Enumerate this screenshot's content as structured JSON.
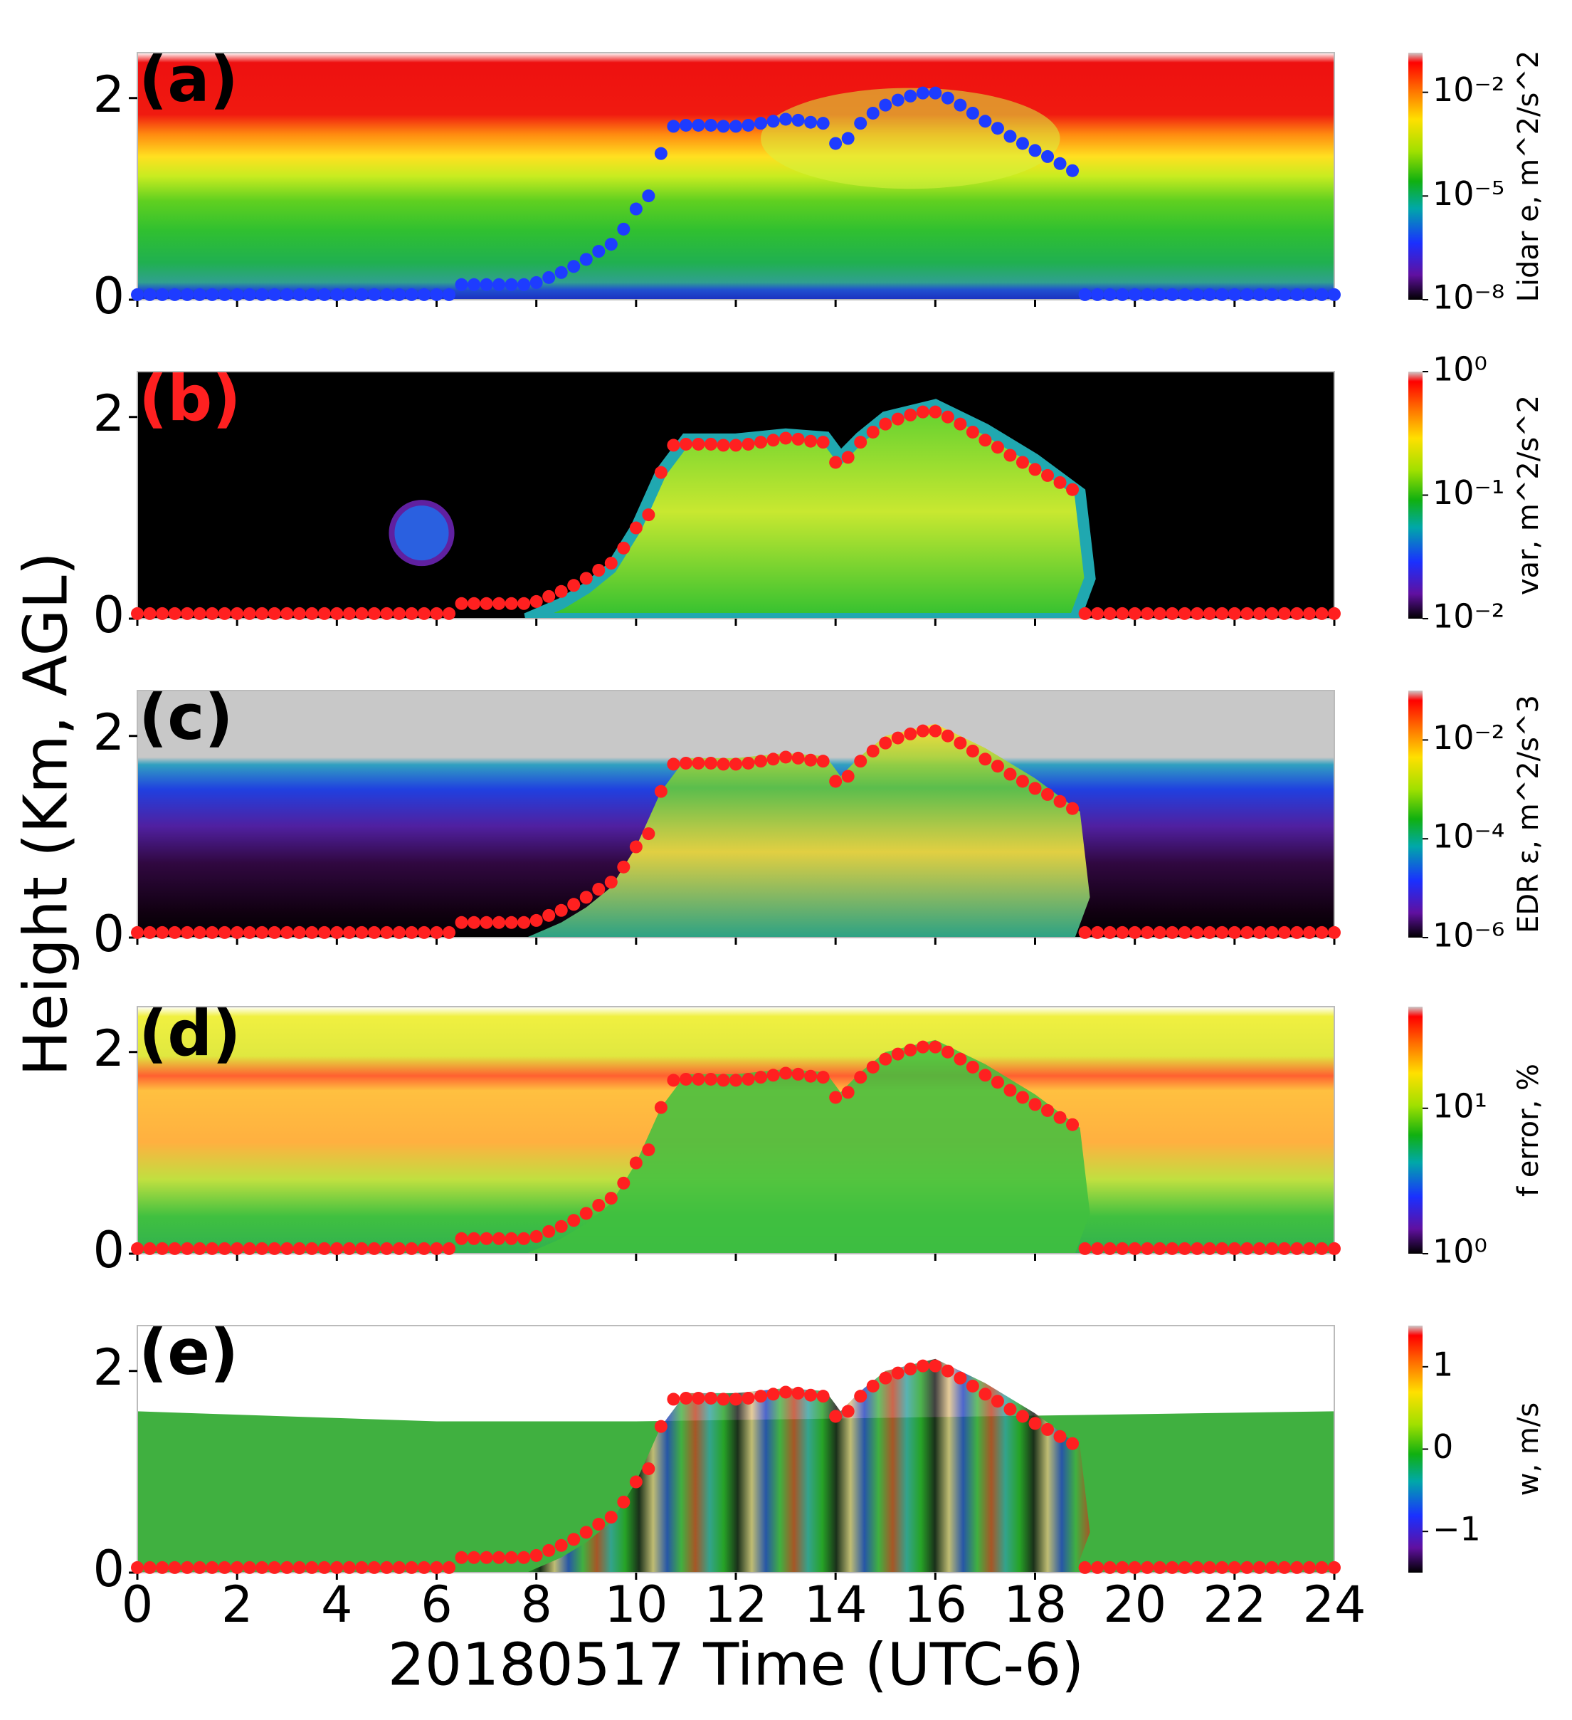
{
  "chart_data": [
    {
      "type": "scatter",
      "panel_label": "(a)",
      "panel_label_color": "#000000",
      "color": "#1e3cff",
      "x": [
        0,
        0.25,
        0.5,
        0.75,
        1,
        1.25,
        1.5,
        1.75,
        2,
        2.25,
        2.5,
        2.75,
        3,
        3.25,
        3.5,
        3.75,
        4,
        4.25,
        4.5,
        4.75,
        5,
        5.25,
        5.5,
        5.75,
        6,
        6.25,
        6.5,
        6.75,
        7,
        7.25,
        7.5,
        7.75,
        8,
        8.25,
        8.5,
        8.75,
        9,
        9.25,
        9.5,
        9.75,
        10,
        10.25,
        10.5,
        10.75,
        11,
        11.25,
        11.5,
        11.75,
        12,
        12.25,
        12.5,
        12.75,
        13,
        13.25,
        13.5,
        13.75,
        14,
        14.25,
        14.5,
        14.75,
        15,
        15.25,
        15.5,
        15.75,
        16,
        16.25,
        16.5,
        16.75,
        17,
        17.25,
        17.5,
        17.75,
        18,
        18.25,
        18.5,
        18.75,
        19,
        19.25,
        19.5,
        19.75,
        20,
        20.25,
        20.5,
        20.75,
        21,
        21.25,
        21.5,
        21.75,
        22,
        22.25,
        22.5,
        22.75,
        23,
        23.25,
        23.5,
        23.75,
        24
      ],
      "values": [
        0.05,
        0.05,
        0.05,
        0.05,
        0.05,
        0.05,
        0.05,
        0.05,
        0.05,
        0.05,
        0.05,
        0.05,
        0.05,
        0.05,
        0.05,
        0.05,
        0.05,
        0.05,
        0.05,
        0.05,
        0.05,
        0.05,
        0.05,
        0.05,
        0.05,
        0.05,
        0.15,
        0.15,
        0.15,
        0.15,
        0.15,
        0.15,
        0.17,
        0.22,
        0.27,
        0.33,
        0.4,
        0.48,
        0.55,
        0.7,
        0.9,
        1.03,
        1.45,
        1.72,
        1.73,
        1.73,
        1.73,
        1.72,
        1.72,
        1.73,
        1.75,
        1.77,
        1.79,
        1.78,
        1.76,
        1.75,
        1.55,
        1.6,
        1.75,
        1.85,
        1.93,
        1.98,
        2.02,
        2.05,
        2.05,
        2.0,
        1.93,
        1.85,
        1.77,
        1.7,
        1.62,
        1.55,
        1.48,
        1.42,
        1.35,
        1.28,
        0.05,
        0.05,
        0.05,
        0.05,
        0.05,
        0.05,
        0.05,
        0.05,
        0.05,
        0.05,
        0.05,
        0.05,
        0.05,
        0.05,
        0.05,
        0.05,
        0.05,
        0.05,
        0.05,
        0.05,
        0.05
      ],
      "xlim": [
        0,
        24
      ],
      "xticks": [
        0,
        2,
        4,
        6,
        8,
        10,
        12,
        14,
        16,
        18,
        20,
        22,
        24
      ],
      "ylim": [
        0,
        2.45
      ],
      "yticks": [
        0,
        2
      ],
      "colorbar_label": "Lidar e, m^2/s^2",
      "color_log": true,
      "clim": [
        1e-08,
        0.14
      ],
      "cticks": [
        {
          "value": 1e-08,
          "label": "10⁻⁸"
        },
        {
          "value": 1e-05,
          "label": "10⁻⁵"
        },
        {
          "value": 0.01,
          "label": "10⁻²"
        }
      ]
    },
    {
      "type": "scatter",
      "panel_label": "(b)",
      "panel_label_color": "#ff2020",
      "color": "#ff2020",
      "x": [
        0,
        0.25,
        0.5,
        0.75,
        1,
        1.25,
        1.5,
        1.75,
        2,
        2.25,
        2.5,
        2.75,
        3,
        3.25,
        3.5,
        3.75,
        4,
        4.25,
        4.5,
        4.75,
        5,
        5.25,
        5.5,
        5.75,
        6,
        6.25,
        6.5,
        6.75,
        7,
        7.25,
        7.5,
        7.75,
        8,
        8.25,
        8.5,
        8.75,
        9,
        9.25,
        9.5,
        9.75,
        10,
        10.25,
        10.5,
        10.75,
        11,
        11.25,
        11.5,
        11.75,
        12,
        12.25,
        12.5,
        12.75,
        13,
        13.25,
        13.5,
        13.75,
        14,
        14.25,
        14.5,
        14.75,
        15,
        15.25,
        15.5,
        15.75,
        16,
        16.25,
        16.5,
        16.75,
        17,
        17.25,
        17.5,
        17.75,
        18,
        18.25,
        18.5,
        18.75,
        19,
        19.25,
        19.5,
        19.75,
        20,
        20.25,
        20.5,
        20.75,
        21,
        21.25,
        21.5,
        21.75,
        22,
        22.25,
        22.5,
        22.75,
        23,
        23.25,
        23.5,
        23.75,
        24
      ],
      "values": [
        0.05,
        0.05,
        0.05,
        0.05,
        0.05,
        0.05,
        0.05,
        0.05,
        0.05,
        0.05,
        0.05,
        0.05,
        0.05,
        0.05,
        0.05,
        0.05,
        0.05,
        0.05,
        0.05,
        0.05,
        0.05,
        0.05,
        0.05,
        0.05,
        0.05,
        0.05,
        0.15,
        0.15,
        0.15,
        0.15,
        0.15,
        0.15,
        0.17,
        0.22,
        0.27,
        0.33,
        0.4,
        0.48,
        0.55,
        0.7,
        0.9,
        1.03,
        1.45,
        1.72,
        1.73,
        1.73,
        1.73,
        1.72,
        1.72,
        1.73,
        1.75,
        1.77,
        1.79,
        1.78,
        1.76,
        1.75,
        1.55,
        1.6,
        1.75,
        1.85,
        1.93,
        1.98,
        2.02,
        2.05,
        2.05,
        2.0,
        1.93,
        1.85,
        1.77,
        1.7,
        1.62,
        1.55,
        1.48,
        1.42,
        1.35,
        1.28,
        0.05,
        0.05,
        0.05,
        0.05,
        0.05,
        0.05,
        0.05,
        0.05,
        0.05,
        0.05,
        0.05,
        0.05,
        0.05,
        0.05,
        0.05,
        0.05,
        0.05,
        0.05,
        0.05,
        0.05,
        0.05
      ],
      "xlim": [
        0,
        24
      ],
      "xticks": [
        0,
        2,
        4,
        6,
        8,
        10,
        12,
        14,
        16,
        18,
        20,
        22,
        24
      ],
      "ylim": [
        0,
        2.45
      ],
      "yticks": [
        0,
        2
      ],
      "colorbar_label": "var, m^2/s^2",
      "color_log": true,
      "clim": [
        0.01,
        1
      ],
      "cticks": [
        {
          "value": 0.01,
          "label": "10⁻²"
        },
        {
          "value": 0.1,
          "label": "10⁻¹"
        },
        {
          "value": 1,
          "label": "10⁰"
        }
      ]
    },
    {
      "type": "scatter",
      "panel_label": "(c)",
      "panel_label_color": "#000000",
      "color": "#ff2020",
      "ylabel": "Height (Km, AGL)",
      "x": [
        0,
        0.25,
        0.5,
        0.75,
        1,
        1.25,
        1.5,
        1.75,
        2,
        2.25,
        2.5,
        2.75,
        3,
        3.25,
        3.5,
        3.75,
        4,
        4.25,
        4.5,
        4.75,
        5,
        5.25,
        5.5,
        5.75,
        6,
        6.25,
        6.5,
        6.75,
        7,
        7.25,
        7.5,
        7.75,
        8,
        8.25,
        8.5,
        8.75,
        9,
        9.25,
        9.5,
        9.75,
        10,
        10.25,
        10.5,
        10.75,
        11,
        11.25,
        11.5,
        11.75,
        12,
        12.25,
        12.5,
        12.75,
        13,
        13.25,
        13.5,
        13.75,
        14,
        14.25,
        14.5,
        14.75,
        15,
        15.25,
        15.5,
        15.75,
        16,
        16.25,
        16.5,
        16.75,
        17,
        17.25,
        17.5,
        17.75,
        18,
        18.25,
        18.5,
        18.75,
        19,
        19.25,
        19.5,
        19.75,
        20,
        20.25,
        20.5,
        20.75,
        21,
        21.25,
        21.5,
        21.75,
        22,
        22.25,
        22.5,
        22.75,
        23,
        23.25,
        23.5,
        23.75,
        24
      ],
      "values": [
        0.05,
        0.05,
        0.05,
        0.05,
        0.05,
        0.05,
        0.05,
        0.05,
        0.05,
        0.05,
        0.05,
        0.05,
        0.05,
        0.05,
        0.05,
        0.05,
        0.05,
        0.05,
        0.05,
        0.05,
        0.05,
        0.05,
        0.05,
        0.05,
        0.05,
        0.05,
        0.15,
        0.15,
        0.15,
        0.15,
        0.15,
        0.15,
        0.17,
        0.22,
        0.27,
        0.33,
        0.4,
        0.48,
        0.55,
        0.7,
        0.9,
        1.03,
        1.45,
        1.72,
        1.73,
        1.73,
        1.73,
        1.72,
        1.72,
        1.73,
        1.75,
        1.77,
        1.79,
        1.78,
        1.76,
        1.75,
        1.55,
        1.6,
        1.75,
        1.85,
        1.93,
        1.98,
        2.02,
        2.05,
        2.05,
        2.0,
        1.93,
        1.85,
        1.77,
        1.7,
        1.62,
        1.55,
        1.48,
        1.42,
        1.35,
        1.28,
        0.05,
        0.05,
        0.05,
        0.05,
        0.05,
        0.05,
        0.05,
        0.05,
        0.05,
        0.05,
        0.05,
        0.05,
        0.05,
        0.05,
        0.05,
        0.05,
        0.05,
        0.05,
        0.05,
        0.05,
        0.05
      ],
      "xlim": [
        0,
        24
      ],
      "xticks": [
        0,
        2,
        4,
        6,
        8,
        10,
        12,
        14,
        16,
        18,
        20,
        22,
        24
      ],
      "ylim": [
        0,
        2.45
      ],
      "yticks": [
        0,
        2
      ],
      "colorbar_label": "EDR ε, m^2/s^3",
      "color_log": true,
      "clim": [
        1e-06,
        0.1
      ],
      "cticks": [
        {
          "value": 1e-06,
          "label": "10⁻⁶"
        },
        {
          "value": 0.0001,
          "label": "10⁻⁴"
        },
        {
          "value": 0.01,
          "label": "10⁻²"
        }
      ]
    },
    {
      "type": "scatter",
      "panel_label": "(d)",
      "panel_label_color": "#000000",
      "color": "#ff2020",
      "x": [
        0,
        0.25,
        0.5,
        0.75,
        1,
        1.25,
        1.5,
        1.75,
        2,
        2.25,
        2.5,
        2.75,
        3,
        3.25,
        3.5,
        3.75,
        4,
        4.25,
        4.5,
        4.75,
        5,
        5.25,
        5.5,
        5.75,
        6,
        6.25,
        6.5,
        6.75,
        7,
        7.25,
        7.5,
        7.75,
        8,
        8.25,
        8.5,
        8.75,
        9,
        9.25,
        9.5,
        9.75,
        10,
        10.25,
        10.5,
        10.75,
        11,
        11.25,
        11.5,
        11.75,
        12,
        12.25,
        12.5,
        12.75,
        13,
        13.25,
        13.5,
        13.75,
        14,
        14.25,
        14.5,
        14.75,
        15,
        15.25,
        15.5,
        15.75,
        16,
        16.25,
        16.5,
        16.75,
        17,
        17.25,
        17.5,
        17.75,
        18,
        18.25,
        18.5,
        18.75,
        19,
        19.25,
        19.5,
        19.75,
        20,
        20.25,
        20.5,
        20.75,
        21,
        21.25,
        21.5,
        21.75,
        22,
        22.25,
        22.5,
        22.75,
        23,
        23.25,
        23.5,
        23.75,
        24
      ],
      "values": [
        0.05,
        0.05,
        0.05,
        0.05,
        0.05,
        0.05,
        0.05,
        0.05,
        0.05,
        0.05,
        0.05,
        0.05,
        0.05,
        0.05,
        0.05,
        0.05,
        0.05,
        0.05,
        0.05,
        0.05,
        0.05,
        0.05,
        0.05,
        0.05,
        0.05,
        0.05,
        0.15,
        0.15,
        0.15,
        0.15,
        0.15,
        0.15,
        0.17,
        0.22,
        0.27,
        0.33,
        0.4,
        0.48,
        0.55,
        0.7,
        0.9,
        1.03,
        1.45,
        1.72,
        1.73,
        1.73,
        1.73,
        1.72,
        1.72,
        1.73,
        1.75,
        1.77,
        1.79,
        1.78,
        1.76,
        1.75,
        1.55,
        1.6,
        1.75,
        1.85,
        1.93,
        1.98,
        2.02,
        2.05,
        2.05,
        2.0,
        1.93,
        1.85,
        1.77,
        1.7,
        1.62,
        1.55,
        1.48,
        1.42,
        1.35,
        1.28,
        0.05,
        0.05,
        0.05,
        0.05,
        0.05,
        0.05,
        0.05,
        0.05,
        0.05,
        0.05,
        0.05,
        0.05,
        0.05,
        0.05,
        0.05,
        0.05,
        0.05,
        0.05,
        0.05,
        0.05,
        0.05
      ],
      "xlim": [
        0,
        24
      ],
      "xticks": [
        0,
        2,
        4,
        6,
        8,
        10,
        12,
        14,
        16,
        18,
        20,
        22,
        24
      ],
      "ylim": [
        0,
        2.45
      ],
      "yticks": [
        0,
        2
      ],
      "colorbar_label": "f error, %",
      "color_log": true,
      "clim": [
        1,
        50
      ],
      "cticks": [
        {
          "value": 1,
          "label": "10⁰"
        },
        {
          "value": 10,
          "label": "10¹"
        }
      ]
    },
    {
      "type": "scatter",
      "panel_label": "(e)",
      "panel_label_color": "#000000",
      "color": "#ff2020",
      "xlabel": "20180517 Time (UTC-6)",
      "x": [
        0,
        0.25,
        0.5,
        0.75,
        1,
        1.25,
        1.5,
        1.75,
        2,
        2.25,
        2.5,
        2.75,
        3,
        3.25,
        3.5,
        3.75,
        4,
        4.25,
        4.5,
        4.75,
        5,
        5.25,
        5.5,
        5.75,
        6,
        6.25,
        6.5,
        6.75,
        7,
        7.25,
        7.5,
        7.75,
        8,
        8.25,
        8.5,
        8.75,
        9,
        9.25,
        9.5,
        9.75,
        10,
        10.25,
        10.5,
        10.75,
        11,
        11.25,
        11.5,
        11.75,
        12,
        12.25,
        12.5,
        12.75,
        13,
        13.25,
        13.5,
        13.75,
        14,
        14.25,
        14.5,
        14.75,
        15,
        15.25,
        15.5,
        15.75,
        16,
        16.25,
        16.5,
        16.75,
        17,
        17.25,
        17.5,
        17.75,
        18,
        18.25,
        18.5,
        18.75,
        19,
        19.25,
        19.5,
        19.75,
        20,
        20.25,
        20.5,
        20.75,
        21,
        21.25,
        21.5,
        21.75,
        22,
        22.25,
        22.5,
        22.75,
        23,
        23.25,
        23.5,
        23.75,
        24
      ],
      "values": [
        0.05,
        0.05,
        0.05,
        0.05,
        0.05,
        0.05,
        0.05,
        0.05,
        0.05,
        0.05,
        0.05,
        0.05,
        0.05,
        0.05,
        0.05,
        0.05,
        0.05,
        0.05,
        0.05,
        0.05,
        0.05,
        0.05,
        0.05,
        0.05,
        0.05,
        0.05,
        0.15,
        0.15,
        0.15,
        0.15,
        0.15,
        0.15,
        0.17,
        0.22,
        0.27,
        0.33,
        0.4,
        0.48,
        0.55,
        0.7,
        0.9,
        1.03,
        1.45,
        1.72,
        1.73,
        1.73,
        1.73,
        1.72,
        1.72,
        1.73,
        1.75,
        1.77,
        1.79,
        1.78,
        1.76,
        1.75,
        1.55,
        1.6,
        1.75,
        1.85,
        1.93,
        1.98,
        2.02,
        2.05,
        2.05,
        2.0,
        1.93,
        1.85,
        1.77,
        1.7,
        1.62,
        1.55,
        1.48,
        1.42,
        1.35,
        1.28,
        0.05,
        0.05,
        0.05,
        0.05,
        0.05,
        0.05,
        0.05,
        0.05,
        0.05,
        0.05,
        0.05,
        0.05,
        0.05,
        0.05,
        0.05,
        0.05,
        0.05,
        0.05,
        0.05,
        0.05,
        0.05
      ],
      "xlim": [
        0,
        24
      ],
      "xticks": [
        0,
        2,
        4,
        6,
        8,
        10,
        12,
        14,
        16,
        18,
        20,
        22,
        24
      ],
      "ylim": [
        0,
        2.45
      ],
      "yticks": [
        0,
        2
      ],
      "colorbar_label": "w, m/s",
      "color_log": false,
      "clim": [
        -1.5,
        1.5
      ],
      "cticks": [
        {
          "value": -1,
          "label": "−1"
        },
        0,
        1
      ]
    }
  ]
}
